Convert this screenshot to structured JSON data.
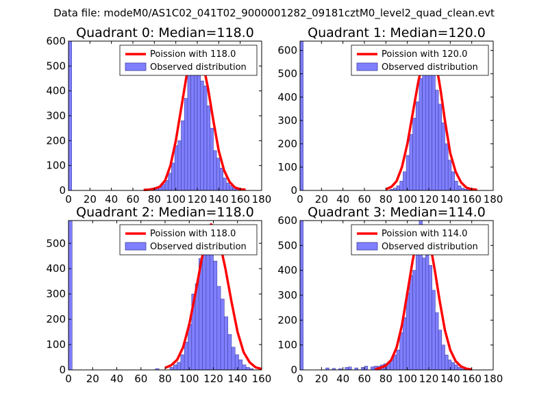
{
  "suptitle": "Data file: modeM0/AS1C02_041T02_9000001282_09181cztM0_level2_quad_clean.evt",
  "colors": {
    "bars": "#7f7fff",
    "bar_edge": "#4040a0",
    "curve": "#ff0000",
    "axes": "#000000",
    "background": "#ffffff"
  },
  "chart_data": [
    {
      "type": "bar",
      "title": "Quadrant 0: Median=118.0",
      "median": 118.0,
      "xlim": [
        0,
        180
      ],
      "ylim": [
        0,
        600
      ],
      "xticks": [
        0,
        20,
        40,
        60,
        80,
        100,
        120,
        140,
        160,
        180
      ],
      "yticks": [
        0,
        100,
        200,
        300,
        400,
        500,
        600
      ],
      "bin_width": 3,
      "legend": {
        "position": "top-right",
        "entries": [
          "Poission with 118.0",
          "Observed distribution"
        ]
      },
      "bins_x": [
        0,
        75,
        78,
        81,
        84,
        87,
        90,
        93,
        96,
        99,
        102,
        105,
        108,
        111,
        114,
        117,
        120,
        123,
        126,
        129,
        132,
        135,
        138,
        141,
        144,
        147,
        150,
        153,
        156,
        159
      ],
      "bins_y": [
        600,
        5,
        8,
        10,
        15,
        25,
        40,
        70,
        110,
        180,
        200,
        280,
        370,
        470,
        510,
        550,
        540,
        440,
        420,
        340,
        250,
        160,
        130,
        90,
        50,
        30,
        20,
        10,
        5,
        2
      ],
      "curve_x": [
        70,
        75,
        80,
        85,
        90,
        95,
        100,
        105,
        110,
        115,
        118,
        121,
        125,
        130,
        135,
        140,
        145,
        150,
        155,
        160,
        165
      ],
      "curve_y": [
        2,
        3,
        7,
        15,
        40,
        100,
        200,
        330,
        460,
        550,
        575,
        565,
        520,
        410,
        280,
        160,
        80,
        35,
        12,
        5,
        3
      ]
    },
    {
      "type": "bar",
      "title": "Quadrant 1: Median=120.0",
      "median": 120.0,
      "xlim": [
        0,
        180
      ],
      "ylim": [
        0,
        640
      ],
      "xticks": [
        0,
        20,
        40,
        60,
        80,
        100,
        120,
        140,
        160,
        180
      ],
      "yticks": [
        0,
        100,
        200,
        300,
        400,
        500,
        600
      ],
      "bin_width": 3,
      "legend": {
        "position": "top-right",
        "entries": [
          "Poission with 120.0",
          "Observed distribution"
        ]
      },
      "bins_x": [
        0,
        84,
        87,
        90,
        93,
        96,
        99,
        102,
        105,
        108,
        111,
        114,
        117,
        120,
        123,
        126,
        129,
        132,
        135,
        138,
        141,
        144,
        147,
        150,
        153,
        156
      ],
      "bins_y": [
        640,
        5,
        10,
        20,
        40,
        80,
        150,
        240,
        310,
        380,
        480,
        560,
        610,
        520,
        500,
        430,
        370,
        290,
        200,
        130,
        80,
        40,
        20,
        10,
        5,
        2
      ],
      "curve_x": [
        80,
        85,
        90,
        95,
        100,
        105,
        110,
        115,
        120,
        123,
        127,
        131,
        135,
        140,
        145,
        150,
        155,
        160,
        165
      ],
      "curve_y": [
        5,
        15,
        40,
        100,
        200,
        330,
        460,
        570,
        610,
        600,
        540,
        430,
        300,
        160,
        80,
        35,
        12,
        5,
        3
      ]
    },
    {
      "type": "bar",
      "title": "Quadrant 2: Median=118.0",
      "median": 118.0,
      "xlim": [
        0,
        160
      ],
      "ylim": [
        0,
        590
      ],
      "xticks": [
        0,
        20,
        40,
        60,
        80,
        100,
        120,
        140,
        160
      ],
      "yticks": [
        0,
        100,
        200,
        300,
        400,
        500
      ],
      "bin_width": 3,
      "legend": {
        "position": "top-right",
        "entries": [
          "Poission with 118.0",
          "Observed distribution"
        ]
      },
      "bins_x": [
        0,
        72,
        84,
        87,
        90,
        93,
        96,
        99,
        102,
        105,
        108,
        111,
        114,
        117,
        120,
        123,
        126,
        129,
        132,
        135,
        138,
        141,
        144,
        147,
        150
      ],
      "bins_y": [
        590,
        5,
        10,
        20,
        30,
        60,
        110,
        180,
        300,
        340,
        440,
        470,
        500,
        550,
        430,
        330,
        280,
        210,
        140,
        90,
        60,
        40,
        20,
        10,
        5
      ],
      "curve_x": [
        80,
        85,
        90,
        95,
        100,
        105,
        110,
        115,
        118,
        121,
        125,
        130,
        135,
        140,
        145,
        150,
        155,
        160
      ],
      "curve_y": [
        8,
        18,
        40,
        90,
        180,
        300,
        430,
        540,
        575,
        565,
        510,
        400,
        270,
        150,
        70,
        30,
        10,
        4
      ]
    },
    {
      "type": "bar",
      "title": "Quadrant 3: Median=114.0",
      "median": 114.0,
      "xlim": [
        0,
        180
      ],
      "ylim": [
        0,
        600
      ],
      "xticks": [
        0,
        20,
        40,
        60,
        80,
        100,
        120,
        140,
        160,
        180
      ],
      "yticks": [
        0,
        100,
        200,
        300,
        400,
        500,
        600
      ],
      "bin_width": 3,
      "legend": {
        "position": "top-right",
        "entries": [
          "Poission with 114.0",
          "Observed distribution"
        ]
      },
      "bins_x": [
        0,
        24,
        30,
        36,
        42,
        45,
        51,
        57,
        60,
        66,
        69,
        72,
        75,
        78,
        81,
        84,
        87,
        90,
        93,
        96,
        99,
        102,
        105,
        108,
        111,
        114,
        117,
        120,
        123,
        126,
        129,
        132,
        135,
        138,
        141,
        144,
        147,
        150,
        153
      ],
      "bins_y": [
        600,
        8,
        6,
        5,
        10,
        12,
        8,
        10,
        15,
        12,
        15,
        15,
        20,
        25,
        30,
        40,
        60,
        80,
        150,
        210,
        310,
        380,
        400,
        520,
        600,
        450,
        460,
        420,
        320,
        230,
        160,
        100,
        60,
        40,
        30,
        20,
        10,
        5,
        2
      ],
      "curve_x": [
        70,
        75,
        80,
        85,
        90,
        95,
        100,
        105,
        110,
        114,
        118,
        122,
        126,
        130,
        135,
        140,
        145,
        150,
        155,
        160
      ],
      "curve_y": [
        3,
        8,
        18,
        40,
        90,
        180,
        310,
        440,
        550,
        580,
        560,
        490,
        390,
        280,
        160,
        80,
        35,
        14,
        5,
        2
      ]
    }
  ]
}
